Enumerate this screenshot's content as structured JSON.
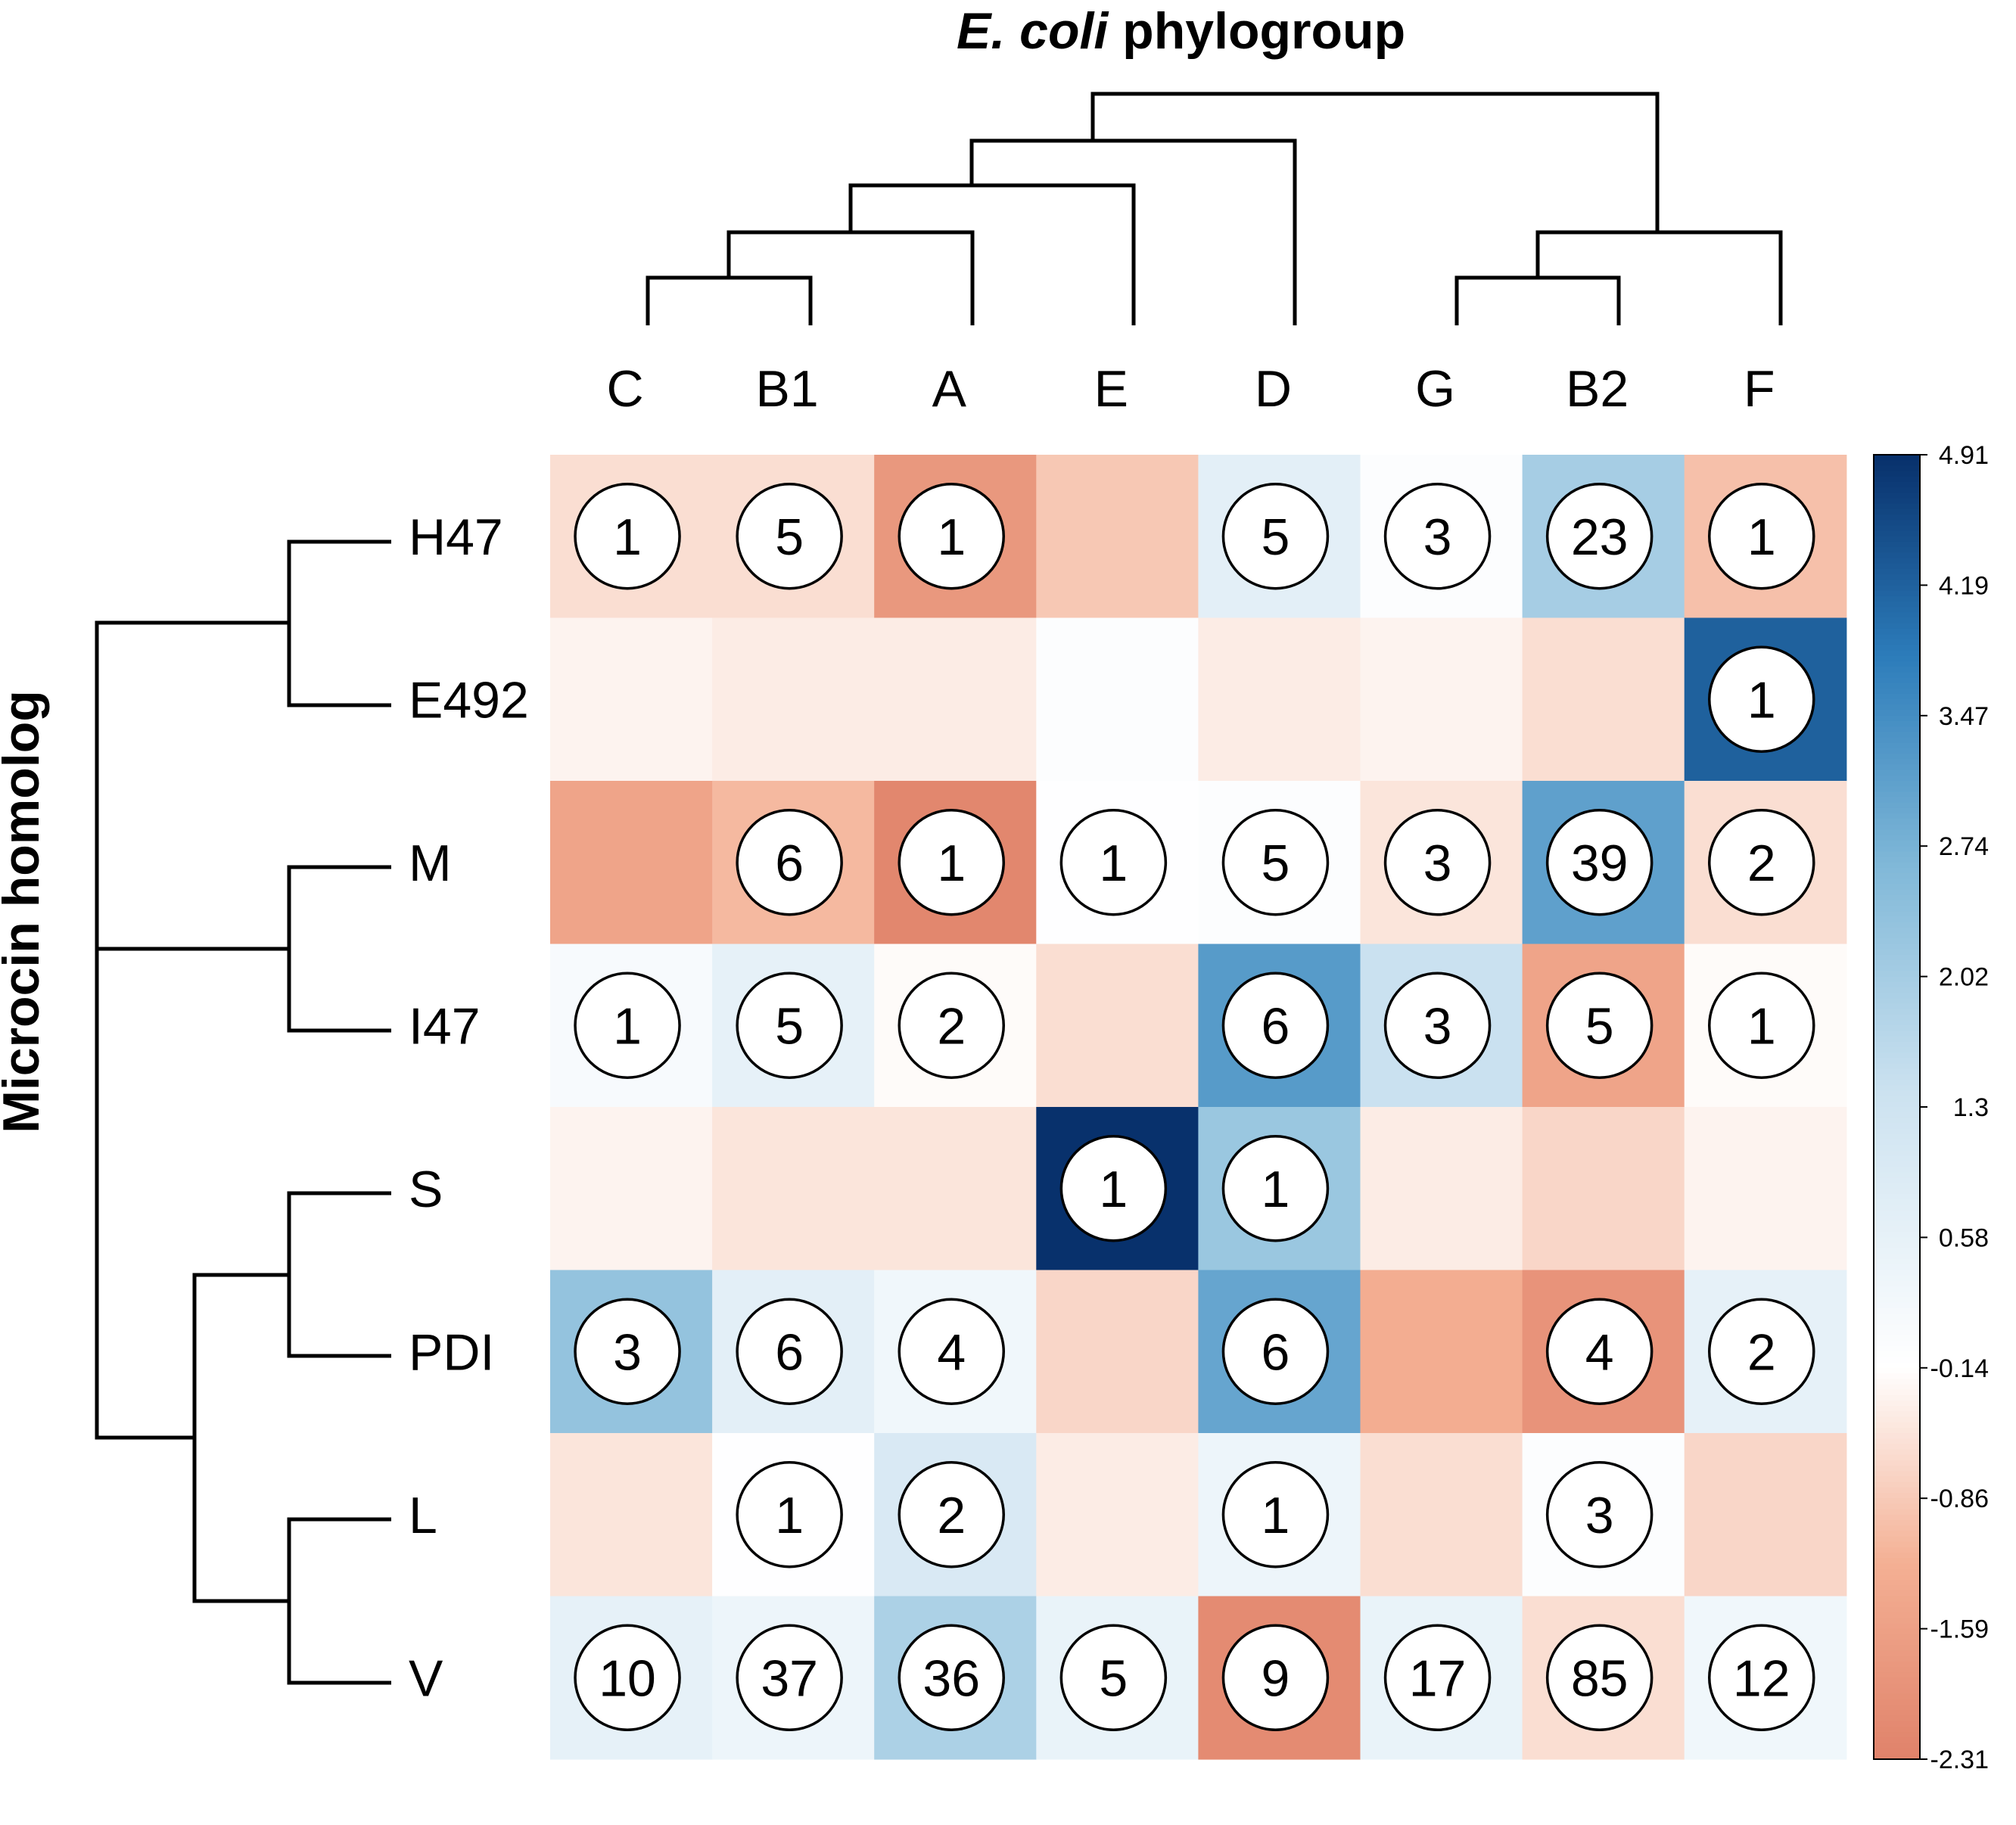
{
  "chart_data": {
    "type": "heatmap",
    "title_italic": "E. coli",
    "title_rest": " phylogroup",
    "ylabel": "Microcin homolog",
    "columns": [
      "C",
      "B1",
      "A",
      "E",
      "D",
      "G",
      "B2",
      "F"
    ],
    "rows": [
      "H47",
      "E492",
      "M",
      "I47",
      "S",
      "PDI",
      "L",
      "V"
    ],
    "counts": [
      [
        1,
        5,
        1,
        null,
        5,
        3,
        23,
        1
      ],
      [
        null,
        null,
        null,
        null,
        null,
        null,
        null,
        1
      ],
      [
        null,
        6,
        1,
        1,
        5,
        3,
        39,
        2
      ],
      [
        1,
        5,
        2,
        null,
        6,
        3,
        5,
        1
      ],
      [
        null,
        null,
        null,
        1,
        1,
        null,
        null,
        null
      ],
      [
        3,
        6,
        4,
        null,
        6,
        null,
        4,
        2
      ],
      [
        null,
        1,
        2,
        null,
        1,
        null,
        3,
        null
      ],
      [
        10,
        37,
        36,
        5,
        9,
        17,
        85,
        12
      ]
    ],
    "values": [
      [
        -0.6,
        -0.6,
        -1.8,
        -0.9,
        0.7,
        -0.05,
        2.0,
        -1.0
      ],
      [
        -0.3,
        -0.4,
        -0.4,
        -0.05,
        -0.4,
        -0.3,
        -0.6,
        4.2
      ],
      [
        -1.5,
        -1.1,
        -2.2,
        -0.1,
        -0.05,
        -0.5,
        3.1,
        -0.6
      ],
      [
        0.1,
        0.6,
        -0.2,
        -0.6,
        3.2,
        1.4,
        -1.5,
        -0.2
      ],
      [
        -0.3,
        -0.5,
        -0.5,
        4.9,
        2.2,
        -0.4,
        -0.7,
        -0.3
      ],
      [
        2.3,
        0.7,
        0.3,
        -0.7,
        3.0,
        -1.3,
        -1.9,
        0.6
      ],
      [
        -0.5,
        -0.1,
        1.0,
        -0.4,
        0.4,
        -0.6,
        -0.05,
        -0.7
      ],
      [
        0.6,
        0.4,
        1.9,
        0.5,
        -2.1,
        0.5,
        -0.6,
        0.3
      ]
    ],
    "range": [
      -2.31,
      4.91
    ],
    "colorbar_ticks": [
      "4.91",
      "4.19",
      "3.47",
      "2.74",
      "2.02",
      "1.3",
      "0.58",
      "-0.14",
      "-0.86",
      "-1.59",
      "-2.31"
    ],
    "colors": {
      "negative": "#e0826a",
      "neutral": "#ffffff",
      "positive": "#08306b"
    }
  }
}
